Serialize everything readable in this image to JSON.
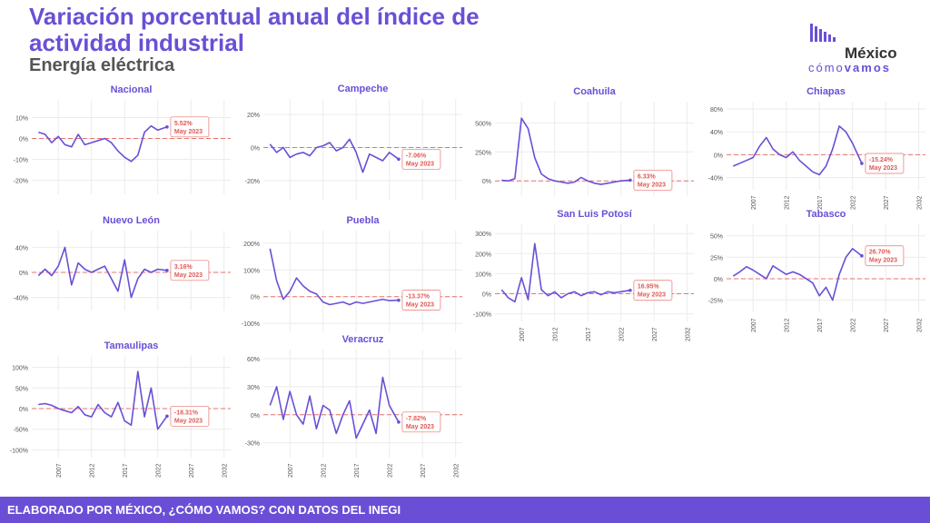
{
  "header": {
    "title": "Variación porcentual anual del índice de actividad industrial",
    "subtitle": "Energía eléctrica"
  },
  "brand": {
    "name_top": "México",
    "name_light": "cómo",
    "name_bold": "vamos",
    "color": "#6a4fd6",
    "dark": "#333333"
  },
  "footer": {
    "text": "ELABORADO POR MÉXICO, ¿CÓMO VAMOS? CON DATOS DEL INEGI"
  },
  "colors": {
    "line": "#6a4fd6",
    "ref": "#e8736d",
    "label": "#e05a55",
    "grid": "#ebebeb",
    "title": "#6a4fd6",
    "tick": "#555555"
  },
  "chart_data": [
    {
      "type": "line",
      "title": "Nacional",
      "ylim": [
        -25,
        15
      ],
      "yticks": [
        -20,
        -10,
        0,
        10
      ],
      "xticks": [
        2007,
        2012,
        2017,
        2022,
        2027,
        2032
      ],
      "show_xticks": false,
      "last_label": "5.52%",
      "date_label": "May 2023",
      "x": [
        2004,
        2005,
        2006,
        2007,
        2008,
        2009,
        2010,
        2011,
        2012,
        2013,
        2014,
        2015,
        2016,
        2017,
        2018,
        2019,
        2020,
        2021,
        2022,
        2023.4
      ],
      "values": [
        3,
        2,
        -2,
        1,
        -3,
        -4,
        2,
        -3,
        -2,
        -1,
        0,
        -2,
        -6,
        -9,
        -11,
        -8,
        3,
        6,
        4,
        5.52
      ]
    },
    {
      "type": "line",
      "title": "Campeche",
      "ylim": [
        -30,
        25
      ],
      "yticks": [
        -20,
        0,
        20
      ],
      "xticks": [
        2007,
        2012,
        2017,
        2022,
        2027,
        2032
      ],
      "show_xticks": false,
      "last_label": "-7.06%",
      "date_label": "May 2023",
      "x": [
        2004,
        2005,
        2006,
        2007,
        2008,
        2009,
        2010,
        2011,
        2012,
        2013,
        2014,
        2015,
        2016,
        2017,
        2018,
        2019,
        2020,
        2021,
        2022,
        2023.4
      ],
      "values": [
        2,
        -3,
        0,
        -6,
        -4,
        -3,
        -5,
        0,
        1,
        3,
        -2,
        0,
        5,
        -3,
        -15,
        -4,
        -6,
        -8,
        -3,
        -7.06
      ]
    },
    {
      "type": "line",
      "title": "Coahuila",
      "ylim": [
        -100,
        620
      ],
      "yticks": [
        0,
        250,
        500
      ],
      "xticks": [
        2007,
        2012,
        2017,
        2022,
        2027,
        2032
      ],
      "show_xticks": false,
      "last_label": "6.33%",
      "date_label": "May 2023",
      "x": [
        2004,
        2005,
        2006,
        2007,
        2008,
        2009,
        2010,
        2011,
        2012,
        2013,
        2014,
        2015,
        2016,
        2017,
        2018,
        2019,
        2020,
        2021,
        2022,
        2023.4
      ],
      "values": [
        5,
        0,
        20,
        540,
        450,
        200,
        60,
        20,
        0,
        -10,
        -20,
        -10,
        30,
        0,
        -20,
        -30,
        -20,
        -10,
        0,
        6.33
      ]
    },
    {
      "type": "line",
      "title": "Chiapas",
      "ylim": [
        -55,
        80
      ],
      "yticks": [
        -40,
        0,
        40,
        80
      ],
      "xticks": [
        2007,
        2012,
        2017,
        2022,
        2027,
        2032
      ],
      "show_xticks": true,
      "last_label": "-15.24%",
      "date_label": "May 2023",
      "x": [
        2004,
        2005,
        2006,
        2007,
        2008,
        2009,
        2010,
        2011,
        2012,
        2013,
        2014,
        2015,
        2016,
        2017,
        2018,
        2019,
        2020,
        2021,
        2022,
        2023.4
      ],
      "values": [
        -20,
        -15,
        -10,
        -5,
        15,
        30,
        10,
        0,
        -5,
        5,
        -10,
        -20,
        -30,
        -35,
        -20,
        10,
        50,
        40,
        20,
        -15.24
      ]
    },
    {
      "type": "line",
      "title": "Nuevo León",
      "ylim": [
        -55,
        55
      ],
      "yticks": [
        -40,
        0,
        40
      ],
      "xticks": [
        2007,
        2012,
        2017,
        2022,
        2027,
        2032
      ],
      "show_xticks": false,
      "last_label": "3.16%",
      "date_label": "May 2023",
      "x": [
        2004,
        2005,
        2006,
        2007,
        2008,
        2009,
        2010,
        2011,
        2012,
        2013,
        2014,
        2015,
        2016,
        2017,
        2018,
        2019,
        2020,
        2021,
        2022,
        2023.4
      ],
      "values": [
        -5,
        5,
        -5,
        10,
        40,
        -20,
        15,
        5,
        0,
        5,
        10,
        -10,
        -30,
        20,
        -40,
        -10,
        5,
        0,
        5,
        3.16
      ]
    },
    {
      "type": "line",
      "title": "Puebla",
      "ylim": [
        -120,
        220
      ],
      "yticks": [
        -100,
        0,
        100,
        200
      ],
      "xticks": [
        2007,
        2012,
        2017,
        2022,
        2027,
        2032
      ],
      "show_xticks": false,
      "last_label": "-13.37%",
      "date_label": "May 2023",
      "x": [
        2004,
        2005,
        2006,
        2007,
        2008,
        2009,
        2010,
        2011,
        2012,
        2013,
        2014,
        2015,
        2016,
        2017,
        2018,
        2019,
        2020,
        2021,
        2022,
        2023.4
      ],
      "values": [
        180,
        60,
        -10,
        20,
        70,
        40,
        20,
        10,
        -20,
        -30,
        -25,
        -20,
        -30,
        -20,
        -25,
        -20,
        -15,
        -10,
        -15,
        -13.37
      ]
    },
    {
      "type": "line",
      "title": "San Luis Potosí",
      "ylim": [
        -120,
        310
      ],
      "yticks": [
        -100,
        0,
        100,
        200,
        300
      ],
      "xticks": [
        2007,
        2012,
        2017,
        2022,
        2027,
        2032
      ],
      "show_xticks": true,
      "last_label": "16.95%",
      "date_label": "May 2023",
      "x": [
        2004,
        2005,
        2006,
        2007,
        2008,
        2009,
        2010,
        2011,
        2012,
        2013,
        2014,
        2015,
        2016,
        2017,
        2018,
        2019,
        2020,
        2021,
        2022,
        2023.4
      ],
      "values": [
        20,
        -20,
        -40,
        80,
        -30,
        250,
        20,
        -10,
        10,
        -20,
        0,
        10,
        -10,
        5,
        10,
        -5,
        10,
        5,
        10,
        16.95
      ]
    },
    {
      "type": "line",
      "title": "Tabasco",
      "ylim": [
        -35,
        55
      ],
      "yticks": [
        -25,
        0,
        25,
        50
      ],
      "xticks": [
        2007,
        2012,
        2017,
        2022,
        2027,
        2032
      ],
      "show_xticks": true,
      "last_label": "26.70%",
      "date_label": "May 2023",
      "x": [
        2004,
        2005,
        2006,
        2007,
        2008,
        2009,
        2010,
        2011,
        2012,
        2013,
        2014,
        2015,
        2016,
        2017,
        2018,
        2019,
        2020,
        2021,
        2022,
        2023.4
      ],
      "values": [
        3,
        8,
        14,
        10,
        5,
        0,
        15,
        10,
        5,
        8,
        5,
        0,
        -5,
        -20,
        -10,
        -25,
        5,
        25,
        35,
        26.7
      ]
    },
    {
      "type": "line",
      "title": "Tamaulipas",
      "ylim": [
        -110,
        110
      ],
      "yticks": [
        -100,
        -50,
        0,
        50,
        100
      ],
      "xticks": [
        2007,
        2012,
        2017,
        2022,
        2027,
        2032
      ],
      "show_xticks": true,
      "last_label": "-18.31%",
      "date_label": "May 2023",
      "x": [
        2004,
        2005,
        2006,
        2007,
        2008,
        2009,
        2010,
        2011,
        2012,
        2013,
        2014,
        2015,
        2016,
        2017,
        2018,
        2019,
        2020,
        2021,
        2022,
        2023.4
      ],
      "values": [
        10,
        12,
        8,
        0,
        -5,
        -10,
        5,
        -15,
        -20,
        10,
        -10,
        -20,
        15,
        -30,
        -40,
        90,
        -20,
        50,
        -50,
        -18.31
      ]
    },
    {
      "type": "line",
      "title": "Veracruz",
      "ylim": [
        -42,
        62
      ],
      "yticks": [
        -30,
        0,
        30,
        60
      ],
      "xticks": [
        2007,
        2012,
        2017,
        2022,
        2027,
        2032
      ],
      "show_xticks": true,
      "last_label": "-7.82%",
      "date_label": "May 2023",
      "x": [
        2004,
        2005,
        2006,
        2007,
        2008,
        2009,
        2010,
        2011,
        2012,
        2013,
        2014,
        2015,
        2016,
        2017,
        2018,
        2019,
        2020,
        2021,
        2022,
        2023.4
      ],
      "values": [
        10,
        30,
        -5,
        25,
        0,
        -10,
        20,
        -15,
        10,
        5,
        -20,
        0,
        15,
        -25,
        -10,
        5,
        -20,
        40,
        10,
        -7.82
      ]
    }
  ]
}
